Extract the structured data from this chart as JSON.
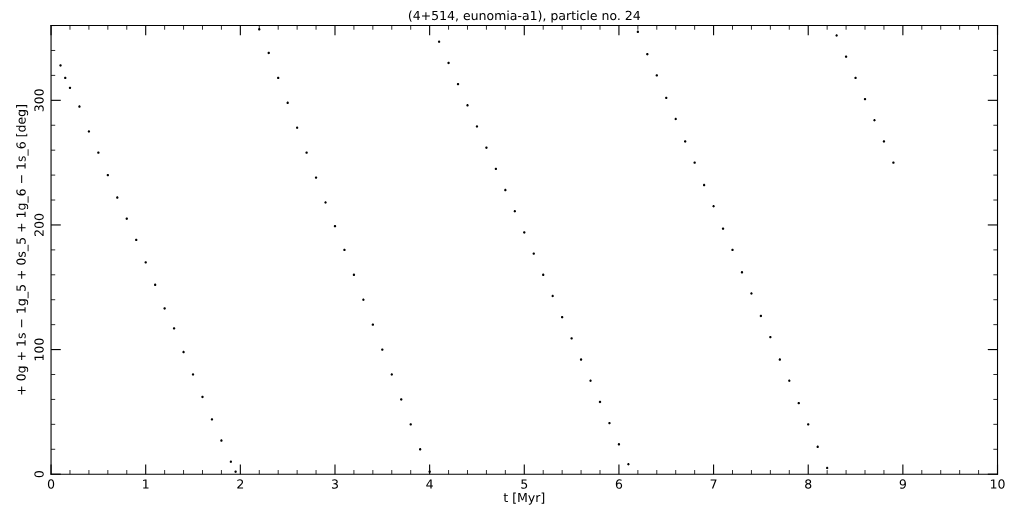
{
  "chart_data": {
    "type": "scatter",
    "title": "(4+514, eunomia-a1), particle no. 24",
    "xlabel": "t [Myr]",
    "ylabel": "+ 0g + 1s − 1g_5 + 0s_5 + 1g_6 − 1s_6 [deg]",
    "xlim": [
      0,
      10
    ],
    "ylim": [
      0,
      360
    ],
    "xticks": [
      0,
      1,
      2,
      3,
      4,
      5,
      6,
      7,
      8,
      9,
      10
    ],
    "yticks": [
      0,
      100,
      200,
      300
    ],
    "grid": false,
    "marker": "circle",
    "series": [
      {
        "color": "#000000",
        "x": [
          0.1,
          0.15,
          0.2,
          0.3,
          0.4,
          0.5,
          0.6,
          0.7,
          0.8,
          0.9,
          1.0,
          1.1,
          1.2,
          1.3,
          1.4,
          1.5,
          1.6,
          1.7,
          1.8,
          1.9,
          1.95,
          2.2,
          2.3,
          2.4,
          2.5,
          2.6,
          2.7,
          2.8,
          2.9,
          3.0,
          3.1,
          3.2,
          3.3,
          3.4,
          3.5,
          3.6,
          3.7,
          3.8,
          3.9,
          4.0,
          4.1,
          4.2,
          4.3,
          4.4,
          4.5,
          4.6,
          4.7,
          4.8,
          4.9,
          5.0,
          5.1,
          5.2,
          5.3,
          5.4,
          5.5,
          5.6,
          5.7,
          5.8,
          5.9,
          6.0,
          6.1,
          6.2,
          6.3,
          6.4,
          6.5,
          6.6,
          6.7,
          6.8,
          6.9,
          7.0,
          7.1,
          7.2,
          7.3,
          7.4,
          7.5,
          7.6,
          7.7,
          7.8,
          7.9,
          8.0,
          8.1,
          8.2,
          8.3,
          8.4,
          8.5,
          8.6,
          8.7,
          8.8,
          8.9
        ],
        "values": [
          328,
          318,
          310,
          295,
          275,
          258,
          240,
          222,
          205,
          188,
          170,
          152,
          133,
          117,
          98,
          80,
          62,
          44,
          27,
          10,
          2,
          357,
          338,
          318,
          298,
          278,
          258,
          238,
          218,
          199,
          180,
          160,
          140,
          120,
          100,
          80,
          60,
          40,
          20,
          2,
          347,
          330,
          313,
          296,
          279,
          262,
          245,
          228,
          211,
          194,
          177,
          160,
          143,
          126,
          109,
          92,
          75,
          58,
          41,
          24,
          8,
          355,
          337,
          320,
          302,
          285,
          267,
          250,
          232,
          215,
          197,
          180,
          162,
          145,
          127,
          110,
          92,
          75,
          57,
          40,
          22,
          5,
          352,
          335,
          318,
          301,
          284,
          267,
          250
        ]
      }
    ]
  }
}
